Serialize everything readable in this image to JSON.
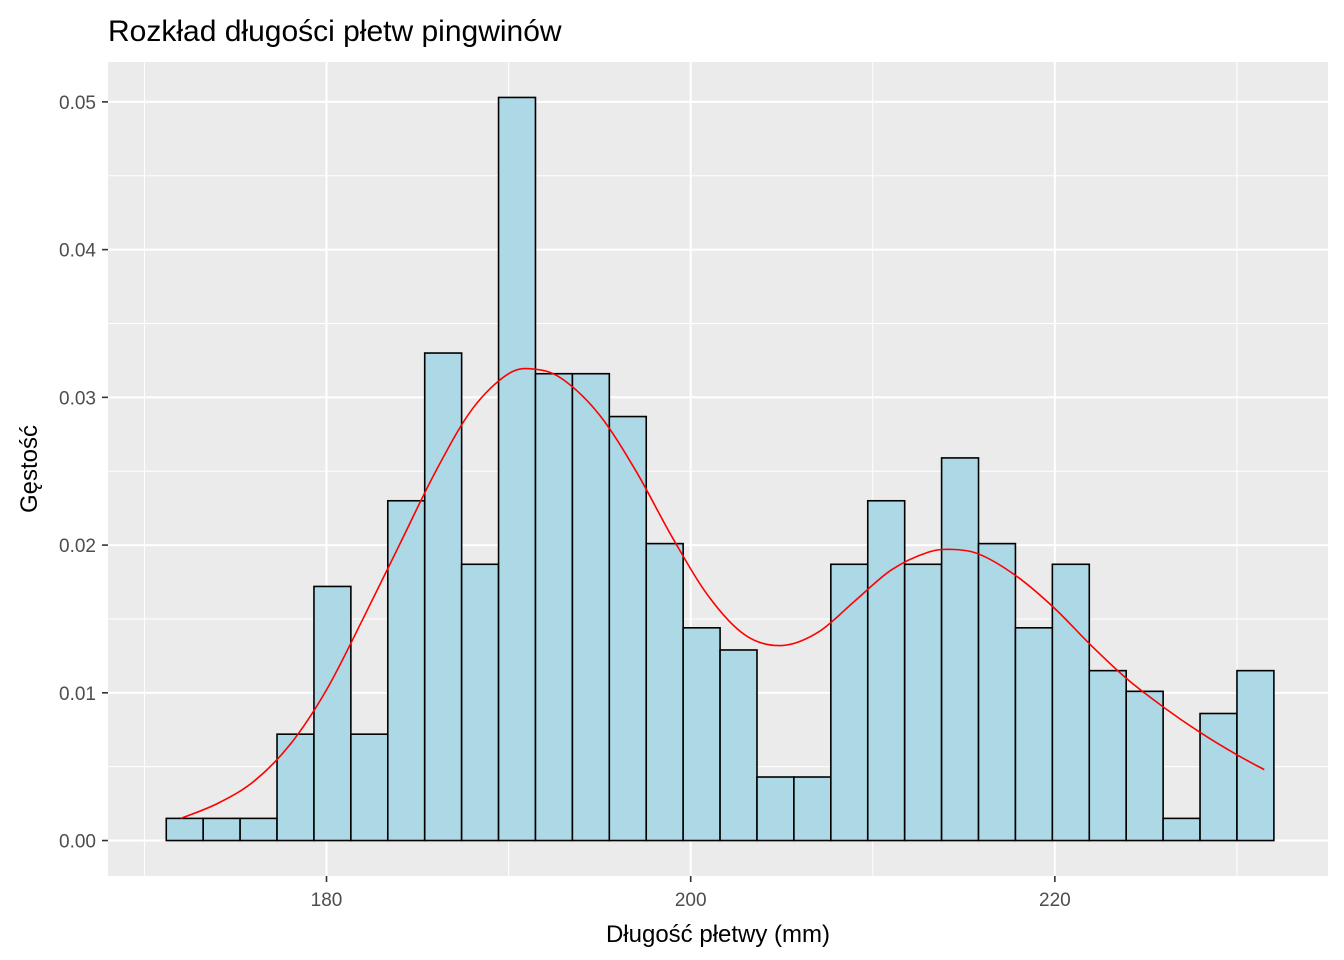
{
  "chart_data": {
    "type": "bar",
    "title": "Rozkład długości płetw pingwinów",
    "xlabel": "Długość płetwy (mm)",
    "ylabel": "Gęstość",
    "xlim": [
      168,
      235
    ],
    "ylim": [
      -0.0024,
      0.0527
    ],
    "x_ticks": [
      {
        "value": 180,
        "label": "180"
      },
      {
        "value": 200,
        "label": "200"
      },
      {
        "value": 220,
        "label": "220"
      }
    ],
    "x_minor_ticks": [
      170,
      190,
      210,
      230
    ],
    "y_ticks": [
      {
        "value": 0.0,
        "label": "0.00"
      },
      {
        "value": 0.01,
        "label": "0.01"
      },
      {
        "value": 0.02,
        "label": "0.02"
      },
      {
        "value": 0.03,
        "label": "0.03"
      },
      {
        "value": 0.04,
        "label": "0.04"
      },
      {
        "value": 0.05,
        "label": "0.05"
      }
    ],
    "y_minor_ticks": [
      0.005,
      0.015,
      0.025,
      0.035,
      0.045
    ],
    "grid": true,
    "histogram": {
      "bin_start": 171.2,
      "bin_width": 2.0276,
      "fill": "#ADD8E6",
      "stroke": "#000000",
      "values": [
        0.0015,
        0.0015,
        0.0015,
        0.0072,
        0.0172,
        0.0072,
        0.023,
        0.033,
        0.0187,
        0.0503,
        0.0316,
        0.0316,
        0.0287,
        0.0201,
        0.0144,
        0.0129,
        0.0043,
        0.0043,
        0.0187,
        0.023,
        0.0187,
        0.0259,
        0.0201,
        0.0144,
        0.0187,
        0.0115,
        0.0101,
        0.0015,
        0.0086,
        0.0115
      ]
    },
    "density": {
      "color": "#FF0000",
      "x": [
        172,
        174,
        176,
        178,
        180,
        182,
        184,
        186,
        188,
        190,
        191.5,
        193,
        195,
        197,
        199,
        201,
        203,
        205,
        207,
        209,
        211,
        213,
        214.5,
        216,
        218,
        220,
        222,
        224,
        226,
        228,
        230,
        231.5
      ],
      "y": [
        0.0015,
        0.0025,
        0.004,
        0.0065,
        0.0102,
        0.015,
        0.02,
        0.025,
        0.0292,
        0.0316,
        0.0319,
        0.0312,
        0.0288,
        0.025,
        0.0205,
        0.0165,
        0.0139,
        0.0132,
        0.0141,
        0.0162,
        0.0183,
        0.0195,
        0.0197,
        0.0193,
        0.0178,
        0.0157,
        0.0132,
        0.0109,
        0.009,
        0.0073,
        0.0058,
        0.0048
      ]
    }
  }
}
